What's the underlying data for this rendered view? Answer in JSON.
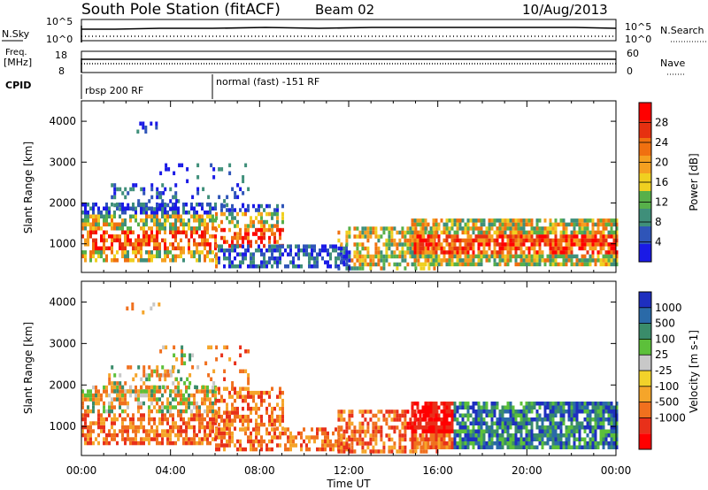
{
  "header": {
    "station": "South Pole Station (fitACF)",
    "beam": "Beam 02",
    "date": "10/Aug/2013"
  },
  "colors": {
    "power_scale": [
      "#1a1ae6",
      "#2f55b8",
      "#3f8f7a",
      "#57b04a",
      "#f0d020",
      "#f5a020",
      "#f07010",
      "#e63010",
      "#ff0000"
    ],
    "velocity_scale": [
      "#1e2fbf",
      "#2a6aa8",
      "#3a8c6a",
      "#5cc03a",
      "#c8c8c8",
      "#f2d22a",
      "#f5a52a",
      "#f0701e",
      "#e8301a",
      "#ff0000"
    ]
  },
  "time_axis": {
    "ticks": [
      "00:00",
      "04:00",
      "08:00",
      "12:00",
      "16:00",
      "20:00",
      "00:00"
    ],
    "label": "Time UT"
  },
  "params": {
    "nsky_label": "N.Sky",
    "nsearch_label": "N.Search",
    "freq_label_1": "Freq.",
    "freq_label_2": "[MHz]",
    "nave_label": "Nave",
    "cpid_label": "CPID",
    "scale_top_left": "10^5",
    "scale_bottom_left": "10^0",
    "scale_top_right": "10^5",
    "scale_bottom_right": "10^0",
    "freq_top": "18",
    "freq_bottom": "8",
    "nave_top": "60",
    "nave_bottom": "0",
    "cpid_1": "rbsp 200 RF",
    "cpid_2": "normal (fast) -151 RF"
  },
  "chart_data": [
    {
      "type": "heatmap",
      "ylabel": "Slant Range [km]",
      "xlabel": "",
      "ylim": [
        300,
        4500
      ],
      "yticks": [
        "1000",
        "2000",
        "3000",
        "4000"
      ],
      "x_range_hours": [
        0,
        24
      ],
      "colorbar": {
        "label": "Power [dB]",
        "ticks": [
          "4",
          "8",
          "12",
          "16",
          "20",
          "24",
          "28"
        ],
        "range": [
          0,
          32
        ]
      }
    },
    {
      "type": "heatmap",
      "ylabel": "Slant Range [km]",
      "xlabel": "Time UT",
      "ylim": [
        300,
        4500
      ],
      "yticks": [
        "1000",
        "2000",
        "3000",
        "4000"
      ],
      "x_range_hours": [
        0,
        24
      ],
      "colorbar": {
        "label": "Velocity [m s-1]",
        "ticks": [
          "1000",
          "500",
          "100",
          "25",
          "-25",
          "-100",
          "-500",
          "-1000"
        ]
      }
    }
  ]
}
